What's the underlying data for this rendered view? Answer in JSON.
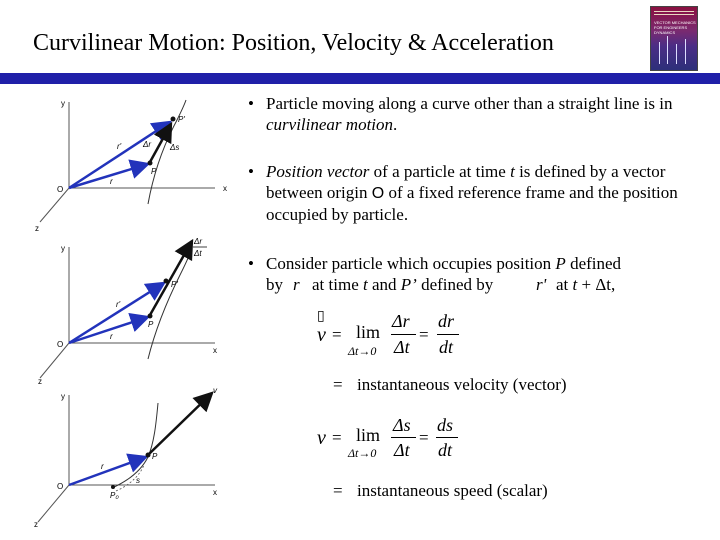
{
  "slide": {
    "title": "Curvilinear Motion:  Position, Velocity & Acceleration"
  },
  "book_cover": {
    "title_lines": "VECTOR MECHANICS\nFOR ENGINEERS\nDYNAMICS"
  },
  "bullets": [
    {
      "bullet_char": "•",
      "text_a": "Particle moving along a curve other than a straight line is in ",
      "text_italic": "curvilinear motion",
      "text_b": "."
    },
    {
      "bullet_char": "•",
      "italic_a": "Position vector",
      "text_a": " of a particle at time ",
      "var_t": "t",
      "text_b": " is defined by a vector between origin ",
      "var_O": "O",
      "text_c": " of a fixed reference frame and the position occupied by particle."
    },
    {
      "bullet_char": "•",
      "text_a": "Consider particle which occupies position ",
      "var_P": "P",
      "text_b": " defined",
      "line2_by": "by",
      "r_symbol": "r",
      "line2_a": "at time ",
      "var_t": "t",
      "line2_b": " and ",
      "var_Pprime": "P’",
      "line2_c": " defined by",
      "rprime_symbol": "r'",
      "line2_d": "at ",
      "var_t2": "t",
      "line2_e": " + ",
      "delta_t": "Δt,"
    }
  ],
  "equations": {
    "velocity": {
      "lhs": "v",
      "vector_marker": "▯",
      "eq1": "=",
      "lim": "lim",
      "lim_sub": "Δt→0",
      "frac1_num": "Δr",
      "frac1_den": "Δt",
      "eq2": "=",
      "frac2_num": "dr",
      "frac2_den": "dt",
      "result_eq": "=",
      "result_text": "instantaneous velocity (vector)"
    },
    "speed": {
      "lhs": "v",
      "eq1": "=",
      "lim": "lim",
      "lim_sub": "Δt→0",
      "frac1_num": "Δs",
      "frac1_den": "Δt",
      "eq2": "=",
      "frac2_num": "ds",
      "frac2_den": "dt",
      "result_eq": "=",
      "result_text": "instantaneous speed (scalar)"
    }
  },
  "figures": {
    "fig1": {
      "y": "y",
      "x": "x",
      "z": "z",
      "O": "O",
      "r": "r",
      "rprime": "r'",
      "P": "P",
      "Pprime": "P'",
      "dr": "Δr",
      "ds": "Δs"
    },
    "fig2": {
      "y": "y",
      "x": "x",
      "z": "z",
      "O": "O",
      "r": "r",
      "rprime": "r'",
      "P": "P",
      "Pprime": "P'",
      "frac_num": "Δr",
      "frac_den": "Δt"
    },
    "fig3": {
      "y": "y",
      "x": "x",
      "z": "z",
      "O": "O",
      "r": "r",
      "P": "P",
      "P0": "P₀",
      "s": "s",
      "v": "v"
    }
  },
  "colors": {
    "rule": "#1f1fa8",
    "vector_blue": "#2233bb",
    "axis": "#555555"
  }
}
